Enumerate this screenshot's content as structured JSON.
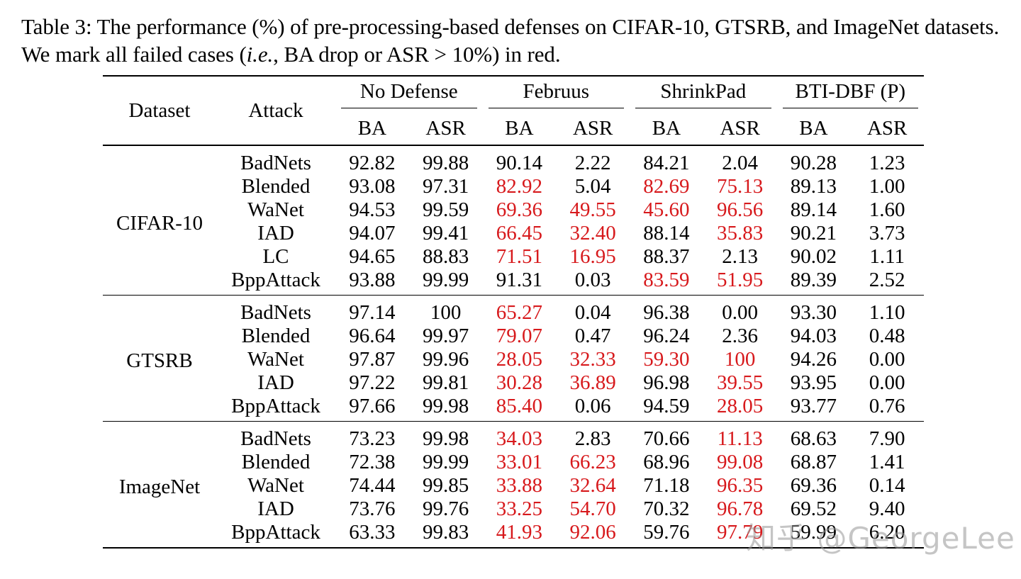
{
  "caption": {
    "text_before_math": "Table 3: The performance (%) of pre-processing-based defenses on CIFAR-10, GTSRB, and ImageNet datasets. We mark all failed cases (",
    "math": "i.e.",
    "text_after_math": ", BA drop or ASR > 10%) in red."
  },
  "header": {
    "dataset": "Dataset",
    "attack": "Attack",
    "groups": [
      "No Defense",
      "Februus",
      "ShrinkPad",
      "BTI-DBF (P)"
    ],
    "metrics": [
      "BA",
      "ASR",
      "BA",
      "ASR",
      "BA",
      "ASR",
      "BA",
      "ASR"
    ]
  },
  "groups": [
    {
      "dataset": "CIFAR-10",
      "rows": [
        {
          "attack": "BadNets",
          "values": [
            "92.82",
            "99.88",
            "90.14",
            "2.22",
            "84.21",
            "2.04",
            "90.28",
            "1.23"
          ],
          "red": [
            false,
            false,
            false,
            false,
            false,
            false,
            false,
            false
          ]
        },
        {
          "attack": "Blended",
          "values": [
            "93.08",
            "97.31",
            "82.92",
            "5.04",
            "82.69",
            "75.13",
            "89.13",
            "1.00"
          ],
          "red": [
            false,
            false,
            true,
            false,
            true,
            true,
            false,
            false
          ]
        },
        {
          "attack": "WaNet",
          "values": [
            "94.53",
            "99.59",
            "69.36",
            "49.55",
            "45.60",
            "96.56",
            "89.14",
            "1.60"
          ],
          "red": [
            false,
            false,
            true,
            true,
            true,
            true,
            false,
            false
          ]
        },
        {
          "attack": "IAD",
          "values": [
            "94.07",
            "99.41",
            "66.45",
            "32.40",
            "88.14",
            "35.83",
            "90.21",
            "3.73"
          ],
          "red": [
            false,
            false,
            true,
            true,
            false,
            true,
            false,
            false
          ]
        },
        {
          "attack": "LC",
          "values": [
            "94.65",
            "88.83",
            "71.51",
            "16.95",
            "88.37",
            "2.13",
            "90.02",
            "1.11"
          ],
          "red": [
            false,
            false,
            true,
            true,
            false,
            false,
            false,
            false
          ]
        },
        {
          "attack": "BppAttack",
          "values": [
            "93.88",
            "99.99",
            "91.31",
            "0.03",
            "83.59",
            "51.95",
            "89.39",
            "2.52"
          ],
          "red": [
            false,
            false,
            false,
            false,
            true,
            true,
            false,
            false
          ]
        }
      ]
    },
    {
      "dataset": "GTSRB",
      "rows": [
        {
          "attack": "BadNets",
          "values": [
            "97.14",
            "100",
            "65.27",
            "0.04",
            "96.38",
            "0.00",
            "93.30",
            "1.10"
          ],
          "red": [
            false,
            false,
            true,
            false,
            false,
            false,
            false,
            false
          ]
        },
        {
          "attack": "Blended",
          "values": [
            "96.64",
            "99.97",
            "79.07",
            "0.47",
            "96.24",
            "2.36",
            "94.03",
            "0.48"
          ],
          "red": [
            false,
            false,
            true,
            false,
            false,
            false,
            false,
            false
          ]
        },
        {
          "attack": "WaNet",
          "values": [
            "97.87",
            "99.96",
            "28.05",
            "32.33",
            "59.30",
            "100",
            "94.26",
            "0.00"
          ],
          "red": [
            false,
            false,
            true,
            true,
            true,
            true,
            false,
            false
          ]
        },
        {
          "attack": "IAD",
          "values": [
            "97.22",
            "99.81",
            "30.28",
            "36.89",
            "96.98",
            "39.55",
            "93.95",
            "0.00"
          ],
          "red": [
            false,
            false,
            true,
            true,
            false,
            true,
            false,
            false
          ]
        },
        {
          "attack": "BppAttack",
          "values": [
            "97.66",
            "99.98",
            "85.40",
            "0.06",
            "94.59",
            "28.05",
            "93.77",
            "0.76"
          ],
          "red": [
            false,
            false,
            true,
            false,
            false,
            true,
            false,
            false
          ]
        }
      ]
    },
    {
      "dataset": "ImageNet",
      "rows": [
        {
          "attack": "BadNets",
          "values": [
            "73.23",
            "99.98",
            "34.03",
            "2.83",
            "70.66",
            "11.13",
            "68.63",
            "7.90"
          ],
          "red": [
            false,
            false,
            true,
            false,
            false,
            true,
            false,
            false
          ]
        },
        {
          "attack": "Blended",
          "values": [
            "72.38",
            "99.99",
            "33.01",
            "66.23",
            "68.96",
            "99.08",
            "68.87",
            "1.41"
          ],
          "red": [
            false,
            false,
            true,
            true,
            false,
            true,
            false,
            false
          ]
        },
        {
          "attack": "WaNet",
          "values": [
            "74.44",
            "99.85",
            "33.88",
            "32.64",
            "71.18",
            "96.35",
            "69.36",
            "0.14"
          ],
          "red": [
            false,
            false,
            true,
            true,
            false,
            true,
            false,
            false
          ]
        },
        {
          "attack": "IAD",
          "values": [
            "73.76",
            "99.76",
            "33.25",
            "54.70",
            "70.32",
            "96.78",
            "69.52",
            "9.40"
          ],
          "red": [
            false,
            false,
            true,
            true,
            false,
            true,
            false,
            false
          ]
        },
        {
          "attack": "BppAttack",
          "values": [
            "63.33",
            "99.83",
            "41.93",
            "92.06",
            "59.76",
            "97.79",
            "59.99",
            "6.20"
          ],
          "red": [
            false,
            false,
            true,
            true,
            false,
            true,
            false,
            false
          ]
        }
      ]
    }
  ],
  "colors": {
    "failed": "#d7191c",
    "text": "#000000"
  },
  "watermark": "知乎 @GeorgeLee"
}
